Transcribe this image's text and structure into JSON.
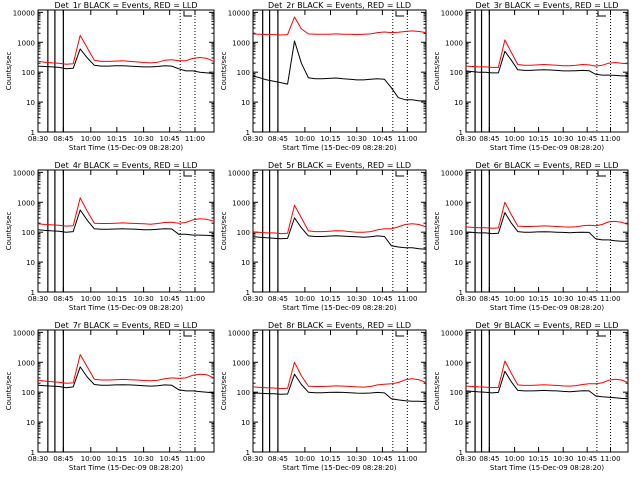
{
  "figure": {
    "subtitle_xlabel": "Start Time (15-Dec-09 08:28:20)",
    "ylabel": "Counts/sec",
    "colors": {
      "events": "#000000",
      "lld": "#ff0000",
      "axis": "#000000"
    }
  },
  "chart_data": [
    {
      "type": "line",
      "id": "p1",
      "title": "Det_1r BLACK = Events, RED = LLD",
      "xlabel": "Start Time (15-Dec-09 08:28:20)",
      "ylabel": "Counts/sec",
      "xticks": [
        "08:30",
        "08:45",
        "10:00",
        "10:15",
        "10:30",
        "10:45",
        "11:00"
      ],
      "yscale": "log",
      "ylim": [
        1,
        12000
      ],
      "yticks": [
        "1",
        "10",
        "100",
        "1000",
        "10000"
      ],
      "series": [
        {
          "name": "Events",
          "color": "#000000",
          "values": [
            160,
            155,
            150,
            145,
            130,
            135,
            600,
            300,
            170,
            160,
            160,
            165,
            165,
            160,
            155,
            150,
            150,
            155,
            165,
            160,
            130,
            110,
            110,
            100,
            95,
            90
          ]
        },
        {
          "name": "LLD",
          "color": "#ff0000",
          "values": [
            230,
            215,
            205,
            200,
            185,
            190,
            1700,
            650,
            250,
            230,
            230,
            235,
            240,
            230,
            220,
            210,
            205,
            215,
            250,
            260,
            240,
            240,
            290,
            310,
            290,
            230
          ]
        }
      ],
      "markers": {
        "solid": [
          1.4,
          2.4,
          3.6
        ],
        "dotted": [
          20.2,
          22.3
        ]
      }
    },
    {
      "type": "line",
      "id": "p2",
      "title": "Det_2r BLACK = Events, RED = LLD",
      "xlabel": "Start Time (15-Dec-09 08:28:20)",
      "ylabel": "Counts/sec",
      "xticks": [
        "08:30",
        "08:45",
        "10:00",
        "10:15",
        "10:30",
        "10:45",
        "11:00"
      ],
      "yscale": "log",
      "ylim": [
        1,
        12000
      ],
      "yticks": [
        "1",
        "10",
        "100",
        "1000",
        "10000"
      ],
      "series": [
        {
          "name": "Events",
          "color": "#000000",
          "values": [
            75,
            65,
            55,
            50,
            45,
            40,
            1100,
            200,
            65,
            60,
            60,
            62,
            64,
            60,
            58,
            55,
            55,
            58,
            60,
            58,
            30,
            14,
            12,
            12,
            11,
            11
          ]
        },
        {
          "name": "LLD",
          "color": "#ff0000",
          "values": [
            1900,
            1850,
            1800,
            1800,
            1750,
            1800,
            7000,
            2800,
            1900,
            1850,
            1850,
            1850,
            1900,
            1850,
            1850,
            1800,
            1850,
            1900,
            2100,
            2200,
            2100,
            2150,
            2300,
            2400,
            2300,
            2100
          ]
        }
      ],
      "markers": {
        "solid": [
          1.4,
          2.4,
          3.6
        ],
        "dotted": [
          20.2,
          22.3
        ]
      }
    },
    {
      "type": "line",
      "id": "p3",
      "title": "Det_3r BLACK = Events, RED = LLD",
      "xlabel": "Start Time (15-Dec-09 08:28:20)",
      "ylabel": "Counts/sec",
      "xticks": [
        "08:30",
        "08:45",
        "10:00",
        "10:15",
        "10:30",
        "10:45",
        "11:00"
      ],
      "yscale": "log",
      "ylim": [
        1,
        12000
      ],
      "yticks": [
        "1",
        "10",
        "100",
        "1000",
        "10000"
      ],
      "series": [
        {
          "name": "Events",
          "color": "#000000",
          "values": [
            110,
            105,
            100,
            100,
            95,
            95,
            500,
            250,
            120,
            115,
            115,
            118,
            120,
            118,
            115,
            110,
            110,
            112,
            115,
            112,
            85,
            80,
            80,
            78,
            75,
            75
          ]
        },
        {
          "name": "LLD",
          "color": "#ff0000",
          "values": [
            160,
            155,
            150,
            150,
            145,
            145,
            1200,
            450,
            180,
            170,
            170,
            175,
            180,
            175,
            170,
            165,
            165,
            170,
            180,
            175,
            160,
            170,
            200,
            210,
            200,
            190
          ]
        }
      ],
      "markers": {
        "solid": [
          1.4,
          2.4,
          3.6
        ],
        "dotted": [
          20.2,
          22.3
        ]
      }
    },
    {
      "type": "line",
      "id": "p4",
      "title": "Det_4r BLACK = Events, RED = LLD",
      "xlabel": "Start Time (15-Dec-09 08:28:20)",
      "ylabel": "Counts/sec",
      "xticks": [
        "08:30",
        "08:45",
        "10:00",
        "10:15",
        "10:30",
        "10:45",
        "11:00"
      ],
      "yscale": "log",
      "ylim": [
        1,
        12000
      ],
      "yticks": [
        "1",
        "10",
        "100",
        "1000",
        "10000"
      ],
      "series": [
        {
          "name": "Events",
          "color": "#000000",
          "values": [
            120,
            115,
            110,
            108,
            100,
            105,
            550,
            250,
            130,
            125,
            125,
            128,
            130,
            128,
            125,
            120,
            120,
            125,
            130,
            128,
            85,
            85,
            80,
            80,
            78,
            75
          ]
        },
        {
          "name": "LLD",
          "color": "#ff0000",
          "values": [
            190,
            180,
            175,
            170,
            160,
            165,
            1400,
            500,
            200,
            195,
            195,
            200,
            205,
            200,
            195,
            190,
            185,
            195,
            210,
            215,
            200,
            210,
            260,
            280,
            270,
            230
          ]
        }
      ],
      "markers": {
        "solid": [
          1.4,
          2.4,
          3.6
        ],
        "dotted": [
          20.2,
          22.3
        ]
      }
    },
    {
      "type": "line",
      "id": "p5",
      "title": "Det_5r BLACK = Events, RED = LLD",
      "xlabel": "Start Time (15-Dec-09 08:28:20)",
      "ylabel": "Counts/sec",
      "xticks": [
        "08:30",
        "08:45",
        "10:00",
        "10:15",
        "10:30",
        "10:45",
        "11:00"
      ],
      "yscale": "log",
      "ylim": [
        1,
        12000
      ],
      "yticks": [
        "1",
        "10",
        "100",
        "1000",
        "10000"
      ],
      "series": [
        {
          "name": "Events",
          "color": "#000000",
          "values": [
            70,
            68,
            65,
            63,
            60,
            62,
            300,
            140,
            75,
            72,
            72,
            74,
            76,
            74,
            72,
            70,
            68,
            70,
            75,
            72,
            35,
            32,
            30,
            30,
            28,
            27
          ]
        },
        {
          "name": "LLD",
          "color": "#ff0000",
          "values": [
            100,
            98,
            95,
            95,
            90,
            92,
            800,
            300,
            110,
            105,
            105,
            108,
            112,
            110,
            105,
            100,
            100,
            105,
            120,
            130,
            130,
            150,
            180,
            190,
            180,
            150
          ]
        }
      ],
      "markers": {
        "solid": [
          1.4,
          2.4,
          3.6
        ],
        "dotted": [
          20.2,
          22.3
        ]
      }
    },
    {
      "type": "line",
      "id": "p6",
      "title": "Det_6r BLACK = Events, RED = LLD",
      "xlabel": "Start Time (15-Dec-09 08:28:20)",
      "ylabel": "Counts/sec",
      "xticks": [
        "08:30",
        "08:45",
        "10:00",
        "10:15",
        "10:30",
        "10:45",
        "11:00"
      ],
      "yscale": "log",
      "ylim": [
        1,
        12000
      ],
      "yticks": [
        "1",
        "10",
        "100",
        "1000",
        "10000"
      ],
      "series": [
        {
          "name": "Events",
          "color": "#000000",
          "values": [
            100,
            98,
            95,
            95,
            90,
            92,
            450,
            200,
            105,
            100,
            100,
            102,
            104,
            102,
            100,
            98,
            96,
            98,
            100,
            98,
            60,
            55,
            55,
            52,
            50,
            50
          ]
        },
        {
          "name": "LLD",
          "color": "#ff0000",
          "values": [
            150,
            145,
            140,
            140,
            135,
            138,
            1000,
            380,
            160,
            155,
            155,
            158,
            162,
            160,
            155,
            150,
            148,
            152,
            165,
            170,
            165,
            180,
            220,
            230,
            215,
            180
          ]
        }
      ],
      "markers": {
        "solid": [
          1.4,
          2.4,
          3.6
        ],
        "dotted": [
          20.2,
          22.3
        ]
      }
    },
    {
      "type": "line",
      "id": "p7",
      "title": "Det_7r BLACK = Events, RED = LLD",
      "xlabel": "Start Time (15-Dec-09 08:28:20)",
      "ylabel": "Counts/sec",
      "xticks": [
        "08:30",
        "08:45",
        "10:00",
        "10:15",
        "10:30",
        "10:45",
        "11:00"
      ],
      "yscale": "log",
      "ylim": [
        1,
        12000
      ],
      "yticks": [
        "1",
        "10",
        "100",
        "1000",
        "10000"
      ],
      "series": [
        {
          "name": "Events",
          "color": "#000000",
          "values": [
            170,
            165,
            160,
            155,
            140,
            150,
            700,
            320,
            180,
            170,
            170,
            175,
            178,
            175,
            170,
            165,
            160,
            165,
            175,
            170,
            120,
            110,
            110,
            105,
            100,
            95
          ]
        },
        {
          "name": "LLD",
          "color": "#ff0000",
          "values": [
            250,
            235,
            225,
            215,
            200,
            205,
            1800,
            700,
            270,
            255,
            255,
            262,
            268,
            262,
            255,
            245,
            240,
            250,
            280,
            300,
            290,
            300,
            370,
            400,
            380,
            300
          ]
        }
      ],
      "markers": {
        "solid": [
          1.4,
          2.4,
          3.6
        ],
        "dotted": [
          20.2,
          22.3
        ]
      }
    },
    {
      "type": "line",
      "id": "p8",
      "title": "Det_8r BLACK = Events, RED = LLD",
      "xlabel": "Start Time (15-Dec-09 08:28:20)",
      "ylabel": "Counts/sec",
      "xticks": [
        "08:30",
        "08:45",
        "10:00",
        "10:15",
        "10:30",
        "10:45",
        "11:00"
      ],
      "yscale": "log",
      "ylim": [
        1,
        12000
      ],
      "yticks": [
        "1",
        "10",
        "100",
        "1000",
        "10000"
      ],
      "series": [
        {
          "name": "Events",
          "color": "#000000",
          "values": [
            95,
            92,
            90,
            88,
            85,
            87,
            400,
            180,
            100,
            96,
            96,
            98,
            100,
            98,
            96,
            93,
            92,
            94,
            98,
            95,
            60,
            55,
            52,
            50,
            50,
            48
          ]
        },
        {
          "name": "LLD",
          "color": "#ff0000",
          "values": [
            150,
            145,
            140,
            138,
            132,
            135,
            1000,
            350,
            160,
            155,
            155,
            158,
            162,
            160,
            155,
            150,
            148,
            155,
            175,
            185,
            190,
            210,
            260,
            280,
            260,
            210
          ]
        }
      ],
      "markers": {
        "solid": [
          1.4,
          2.4,
          3.6
        ],
        "dotted": [
          20.2,
          22.3
        ]
      }
    },
    {
      "type": "line",
      "id": "p9",
      "title": "Det_9r BLACK = Events, RED = LLD",
      "xlabel": "Start Time (15-Dec-09 08:28:20)",
      "ylabel": "Counts/sec",
      "xticks": [
        "08:30",
        "08:45",
        "10:00",
        "10:15",
        "10:30",
        "10:45",
        "11:00"
      ],
      "yscale": "log",
      "ylim": [
        1,
        12000
      ],
      "yticks": [
        "1",
        "10",
        "100",
        "1000",
        "10000"
      ],
      "series": [
        {
          "name": "Events",
          "color": "#000000",
          "values": [
            110,
            106,
            102,
            100,
            95,
            98,
            500,
            220,
            115,
            110,
            110,
            112,
            115,
            112,
            110,
            106,
            104,
            108,
            112,
            110,
            75,
            70,
            68,
            65,
            62,
            60
          ]
        },
        {
          "name": "LLD",
          "color": "#ff0000",
          "values": [
            160,
            155,
            150,
            148,
            142,
            145,
            1100,
            420,
            175,
            168,
            168,
            172,
            176,
            172,
            168,
            162,
            160,
            166,
            180,
            190,
            190,
            205,
            250,
            270,
            255,
            210
          ]
        }
      ],
      "markers": {
        "solid": [
          1.4,
          2.4,
          3.6
        ],
        "dotted": [
          20.2,
          22.3
        ]
      }
    }
  ]
}
